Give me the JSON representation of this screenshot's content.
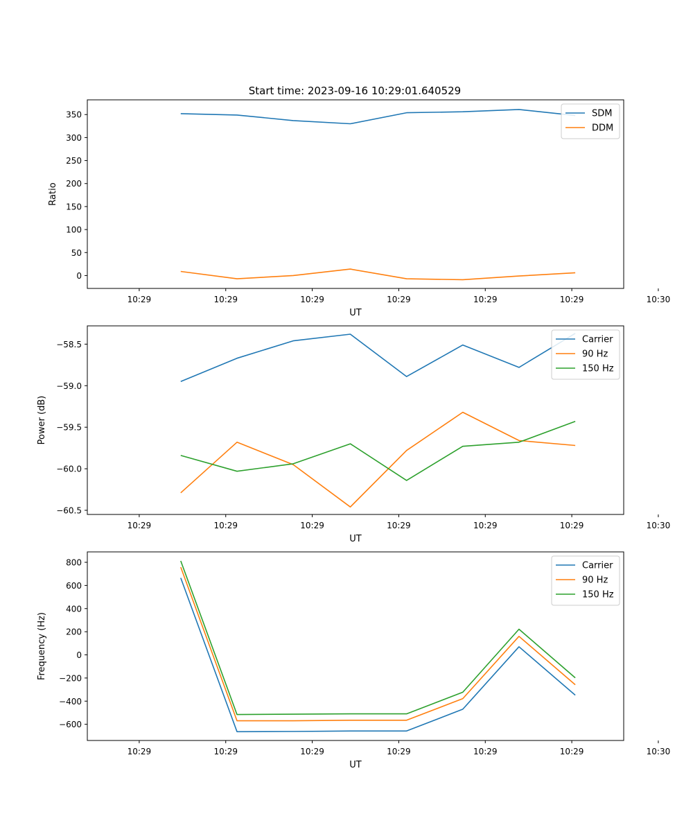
{
  "figure": {
    "title": "Start time: 2023-09-16 10:29:01.640529"
  },
  "chart_data": [
    {
      "type": "line",
      "title": "Start time: 2023-09-16 10:29:01.640529",
      "xlabel": "UT",
      "ylabel": "Ratio",
      "xlim": [
        -0.6,
        5.6
      ],
      "ylim": [
        -28,
        382
      ],
      "x_ticks": [
        {
          "value": 0,
          "label": "10:29"
        },
        {
          "value": 1,
          "label": "10:29"
        },
        {
          "value": 2,
          "label": "10:29"
        },
        {
          "value": 3,
          "label": "10:29"
        },
        {
          "value": 4,
          "label": "10:29"
        },
        {
          "value": 5,
          "label": "10:29"
        },
        {
          "value": 6,
          "label": "10:30"
        }
      ],
      "y_ticks": [
        0,
        50,
        100,
        150,
        200,
        250,
        300,
        350
      ],
      "y_tick_labels": [
        "0",
        "50",
        "100",
        "150",
        "200",
        "250",
        "300",
        "350"
      ],
      "x": [
        0.48,
        1.13,
        1.78,
        2.44,
        3.09,
        3.74,
        4.39,
        5.04
      ],
      "series": [
        {
          "name": "SDM",
          "color": "#1f77b4",
          "values": [
            352,
            349,
            337,
            330,
            354,
            356,
            361,
            348
          ]
        },
        {
          "name": "DDM",
          "color": "#ff7f0e",
          "values": [
            9,
            -7,
            0,
            14,
            -7,
            -9,
            -1,
            6
          ]
        }
      ],
      "legend": "top-right"
    },
    {
      "type": "line",
      "title": "",
      "xlabel": "UT",
      "ylabel": "Power (dB)",
      "xlim": [
        -0.6,
        5.6
      ],
      "ylim": [
        -60.55,
        -58.28
      ],
      "x_ticks": [
        {
          "value": 0,
          "label": "10:29"
        },
        {
          "value": 1,
          "label": "10:29"
        },
        {
          "value": 2,
          "label": "10:29"
        },
        {
          "value": 3,
          "label": "10:29"
        },
        {
          "value": 4,
          "label": "10:29"
        },
        {
          "value": 5,
          "label": "10:29"
        },
        {
          "value": 6,
          "label": "10:30"
        }
      ],
      "y_ticks": [
        -60.5,
        -60.0,
        -59.5,
        -59.0,
        -58.5
      ],
      "y_tick_labels": [
        "−60.5",
        "−60.0",
        "−59.5",
        "−59.0",
        "−58.5"
      ],
      "x": [
        0.48,
        1.13,
        1.78,
        2.44,
        3.09,
        3.74,
        4.39,
        5.04
      ],
      "series": [
        {
          "name": "Carrier",
          "color": "#1f77b4",
          "values": [
            -58.95,
            -58.67,
            -58.46,
            -58.38,
            -58.89,
            -58.51,
            -58.78,
            -58.37
          ]
        },
        {
          "name": "90 Hz",
          "color": "#ff7f0e",
          "values": [
            -60.29,
            -59.68,
            -59.95,
            -60.46,
            -59.78,
            -59.32,
            -59.66,
            -59.72
          ]
        },
        {
          "name": "150 Hz",
          "color": "#2ca02c",
          "values": [
            -59.84,
            -60.03,
            -59.94,
            -59.7,
            -60.14,
            -59.73,
            -59.68,
            -59.43
          ]
        }
      ],
      "legend": "top-right"
    },
    {
      "type": "line",
      "title": "",
      "xlabel": "UT",
      "ylabel": "Frequency (Hz)",
      "xlim": [
        -0.6,
        5.6
      ],
      "ylim": [
        -740,
        890
      ],
      "x_ticks": [
        {
          "value": 0,
          "label": "10:29"
        },
        {
          "value": 1,
          "label": "10:29"
        },
        {
          "value": 2,
          "label": "10:29"
        },
        {
          "value": 3,
          "label": "10:29"
        },
        {
          "value": 4,
          "label": "10:29"
        },
        {
          "value": 5,
          "label": "10:29"
        },
        {
          "value": 6,
          "label": "10:30"
        }
      ],
      "y_ticks": [
        -600,
        -400,
        -200,
        0,
        200,
        400,
        600,
        800
      ],
      "y_tick_labels": [
        "−600",
        "−400",
        "−200",
        "0",
        "200",
        "400",
        "600",
        "800"
      ],
      "x": [
        0.48,
        1.13,
        1.78,
        2.44,
        3.09,
        3.74,
        4.39,
        5.04
      ],
      "series": [
        {
          "name": "Carrier",
          "color": "#1f77b4",
          "values": [
            665,
            -664,
            -662,
            -658,
            -658,
            -470,
            70,
            -348
          ]
        },
        {
          "name": "90 Hz",
          "color": "#ff7f0e",
          "values": [
            758,
            -570,
            -570,
            -565,
            -565,
            -378,
            160,
            -258
          ]
        },
        {
          "name": "150 Hz",
          "color": "#2ca02c",
          "values": [
            812,
            -516,
            -513,
            -510,
            -510,
            -323,
            222,
            -198
          ]
        }
      ],
      "legend": "top-right"
    }
  ]
}
